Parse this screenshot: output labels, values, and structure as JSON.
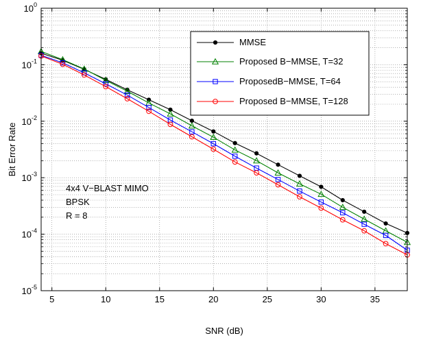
{
  "chart_data": {
    "type": "line",
    "title": "",
    "xlabel": "SNR (dB)",
    "ylabel": "Bit Error Rate",
    "xlim": [
      4,
      38
    ],
    "ylim": [
      1e-05,
      1
    ],
    "yscale": "log",
    "grid": true,
    "legend_position": "top-right",
    "x": [
      4,
      6,
      8,
      10,
      12,
      14,
      16,
      18,
      20,
      22,
      24,
      26,
      28,
      30,
      32,
      34,
      36,
      38
    ],
    "x_ticks": [
      5,
      10,
      15,
      20,
      25,
      30,
      35
    ],
    "y_ticks": [
      {
        "mantissa": "10",
        "exponent": "-5",
        "value": 1e-05
      },
      {
        "mantissa": "10",
        "exponent": "-4",
        "value": 0.0001
      },
      {
        "mantissa": "10",
        "exponent": "-3",
        "value": 0.001
      },
      {
        "mantissa": "10",
        "exponent": "-2",
        "value": 0.01
      },
      {
        "mantissa": "10",
        "exponent": "-1",
        "value": 0.1
      },
      {
        "mantissa": "10",
        "exponent": "0",
        "value": 1
      }
    ],
    "series": [
      {
        "name": "MMSE",
        "color": "#000000",
        "marker": "dot",
        "values": [
          0.16,
          0.12,
          0.083,
          0.055,
          0.036,
          0.024,
          0.016,
          0.0102,
          0.0066,
          0.0041,
          0.0027,
          0.0017,
          0.00108,
          0.00069,
          0.0004,
          0.00025,
          0.000155,
          0.000105
        ]
      },
      {
        "name": "Proposed B−MMSE, T=32",
        "color": "#008000",
        "marker": "triangle",
        "values": [
          0.172,
          0.123,
          0.084,
          0.053,
          0.034,
          0.021,
          0.0135,
          0.0083,
          0.0052,
          0.0031,
          0.002,
          0.00122,
          0.00078,
          0.00051,
          0.0003,
          0.000185,
          0.000115,
          7.2e-05
        ]
      },
      {
        "name": "ProposedB−MMSE, T=64",
        "color": "#0000ff",
        "marker": "square",
        "values": [
          0.147,
          0.108,
          0.072,
          0.046,
          0.029,
          0.0175,
          0.0105,
          0.0065,
          0.004,
          0.0024,
          0.00148,
          0.00093,
          0.00058,
          0.00037,
          0.00024,
          0.00015,
          9.5e-05,
          5.2e-05
        ]
      },
      {
        "name": "Proposed B−MMSE, T=128",
        "color": "#ff0000",
        "marker": "circle",
        "values": [
          0.143,
          0.102,
          0.066,
          0.041,
          0.025,
          0.015,
          0.0088,
          0.0053,
          0.0032,
          0.0019,
          0.00122,
          0.00075,
          0.00046,
          0.00029,
          0.00018,
          0.000115,
          6.8e-05,
          4.3e-05
        ]
      }
    ],
    "annotation_lines": [
      "4x4 V−BLAST MIMO",
      "BPSK",
      "R = 8"
    ]
  }
}
